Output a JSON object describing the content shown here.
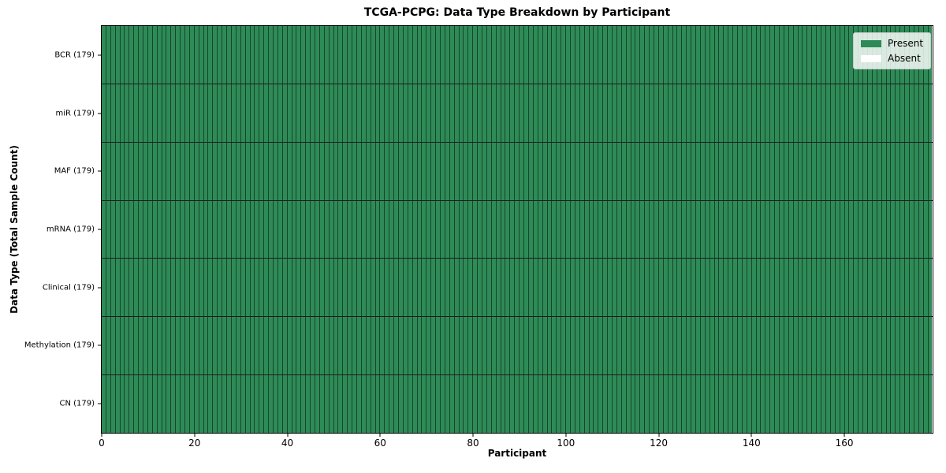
{
  "title": "TCGA-PCPG: Data Type Breakdown by Participant",
  "axes": {
    "x_label": "Participant",
    "y_label": "Data Type (Total Sample Count)"
  },
  "legend": {
    "position": "upper right",
    "entries": [
      {
        "label": "Present",
        "color": "#2e8b57"
      },
      {
        "label": "Absent",
        "color": "#ffffff"
      }
    ]
  },
  "chart_data": {
    "type": "heatmap",
    "title": "TCGA-PCPG: Data Type Breakdown by Participant",
    "xlabel": "Participant",
    "ylabel": "Data Type (Total Sample Count)",
    "xlim": [
      0,
      179
    ],
    "x_ticks": [
      0,
      20,
      40,
      60,
      80,
      100,
      120,
      140,
      160
    ],
    "n_participants": 179,
    "categories": [
      "BCR (179)",
      "miR (179)",
      "MAF (179)",
      "mRNA (179)",
      "Clinical (179)",
      "Methylation (179)",
      "CN (179)"
    ],
    "rows": [
      {
        "label": "BCR (179)",
        "data_type": "BCR",
        "total_sample_count": 179,
        "present_count": 179,
        "absent_count": 0
      },
      {
        "label": "miR (179)",
        "data_type": "miR",
        "total_sample_count": 179,
        "present_count": 179,
        "absent_count": 0
      },
      {
        "label": "MAF (179)",
        "data_type": "MAF",
        "total_sample_count": 179,
        "present_count": 179,
        "absent_count": 0
      },
      {
        "label": "mRNA (179)",
        "data_type": "mRNA",
        "total_sample_count": 179,
        "present_count": 179,
        "absent_count": 0
      },
      {
        "label": "Clinical (179)",
        "data_type": "Clinical",
        "total_sample_count": 179,
        "present_count": 179,
        "absent_count": 0
      },
      {
        "label": "Methylation (179)",
        "data_type": "Methylation",
        "total_sample_count": 179,
        "present_count": 179,
        "absent_count": 0
      },
      {
        "label": "CN (179)",
        "data_type": "CN",
        "total_sample_count": 179,
        "present_count": 179,
        "absent_count": 0
      }
    ],
    "colors": {
      "present": "#2e8b57",
      "absent": "#ffffff",
      "cell_border": "rgba(0,0,0,0.5)",
      "row_border": "#1c1c1c"
    },
    "legend_position": "upper right",
    "grid": "off"
  }
}
